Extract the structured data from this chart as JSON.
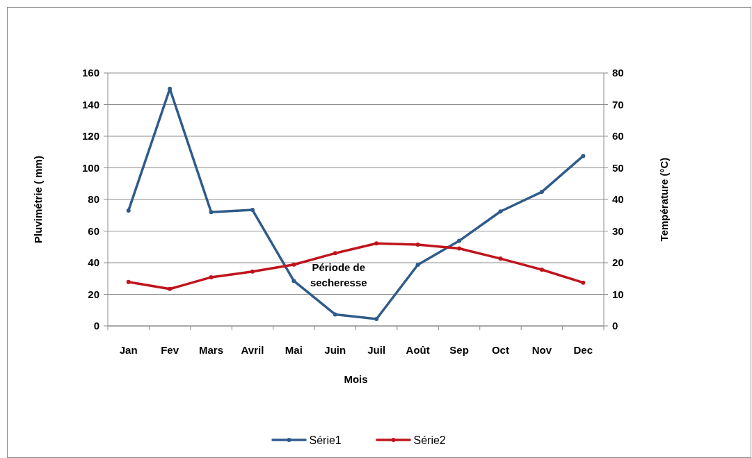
{
  "chart_data": {
    "type": "line",
    "xlabel": "Mois",
    "ylabel": "Pluvimétrie ( mm)",
    "y2label": "Température (°C)",
    "categories": [
      "Jan",
      "Fev",
      "Mars",
      "Avril",
      "Mai",
      "Juin",
      "Juil",
      "Août",
      "Sep",
      "Oct",
      "Nov",
      "Dec"
    ],
    "series": [
      {
        "name": "Série1",
        "color": "#2f5b8a",
        "values": [
          73,
          150,
          72,
          73.4,
          28.5,
          7.3,
          4.4,
          38.7,
          53.8,
          72.4,
          84.8,
          107.5
        ]
      },
      {
        "name": "Série2",
        "color": "#c0141c",
        "axis": "y2",
        "values": [
          13.9,
          11.7,
          15.4,
          17.2,
          19.4,
          23,
          26.1,
          25.7,
          24.5,
          21.3,
          17.8,
          13.7
        ]
      }
    ],
    "ylim": [
      0,
      160
    ],
    "yticks": [
      0,
      20,
      40,
      60,
      80,
      100,
      120,
      140,
      160
    ],
    "y2lim": [
      0,
      80
    ],
    "y2ticks": [
      0,
      10,
      20,
      30,
      40,
      50,
      60,
      70,
      80
    ],
    "annotations": [
      "Période de\nsecheresse"
    ],
    "grid": "y",
    "legend": "bottom",
    "marker": "circle",
    "line_style": "solid"
  }
}
